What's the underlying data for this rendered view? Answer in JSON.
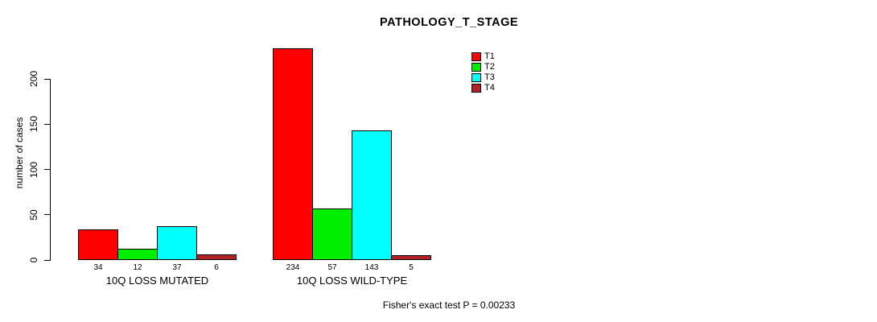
{
  "title": "PATHOLOGY_T_STAGE",
  "footer_note": "Fisher's exact test P = 0.00233",
  "chart_data": {
    "type": "bar",
    "title": "PATHOLOGY_T_STAGE",
    "xlabel": "",
    "ylabel": "number of cases",
    "ylim": [
      0,
      240
    ],
    "yticks": [
      0,
      50,
      100,
      150,
      200
    ],
    "grid": false,
    "legend_position": "top-right",
    "categories": [
      "10Q LOSS MUTATED",
      "10Q LOSS WILD-TYPE"
    ],
    "series": [
      {
        "name": "T1",
        "color": "#ff0000",
        "values": [
          34,
          234
        ]
      },
      {
        "name": "T2",
        "color": "#00ee00",
        "values": [
          12,
          57
        ]
      },
      {
        "name": "T3",
        "color": "#00ffff",
        "values": [
          37,
          143
        ]
      },
      {
        "name": "T4",
        "color": "#b22222",
        "values": [
          6,
          5
        ]
      }
    ],
    "bar_value_labels": [
      [
        34,
        12,
        37,
        6
      ],
      [
        234,
        57,
        143,
        5
      ]
    ],
    "annotation": "Fisher's exact test P = 0.00233"
  }
}
